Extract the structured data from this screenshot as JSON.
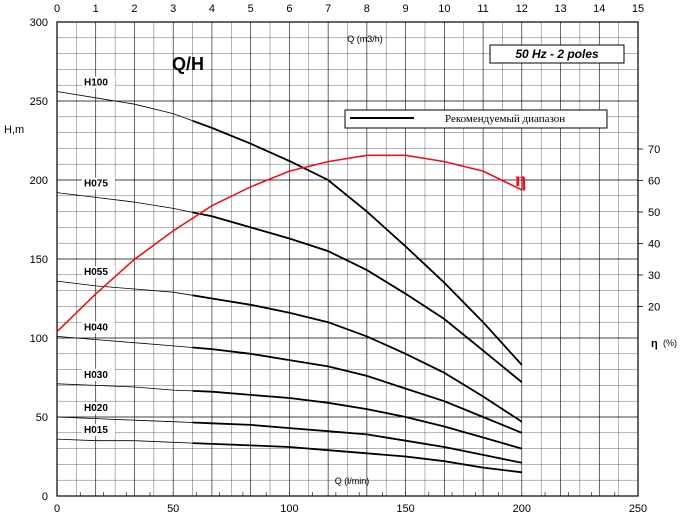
{
  "chart_data": {
    "type": "line",
    "title": "Q/H",
    "badge": "50 Hz - 2 poles",
    "ylabel": "H,m",
    "ylim": [
      0,
      300
    ],
    "yticks": [
      0,
      50,
      100,
      150,
      200,
      250,
      300
    ],
    "x_top": {
      "label": "Q (m3/h)",
      "range": [
        0,
        15
      ],
      "ticks": [
        0,
        1,
        2,
        3,
        4,
        5,
        6,
        7,
        8,
        9,
        10,
        11,
        12,
        13,
        14,
        15
      ]
    },
    "x_bottom": {
      "label": "Q (l/min)",
      "range": [
        0,
        250
      ],
      "ticks": [
        0,
        50,
        100,
        150,
        200,
        250
      ]
    },
    "eta_axis": {
      "label": "η",
      "unit": "(%)",
      "ticks": [
        20,
        30,
        40,
        50,
        60,
        70
      ]
    },
    "legend": {
      "text": "Рекомендуемый диапазон"
    },
    "series": [
      {
        "name": "H100",
        "x": [
          0,
          1,
          2,
          3,
          4,
          5,
          6,
          7,
          7.5,
          8,
          9,
          10,
          11,
          12
        ],
        "y": [
          256,
          252,
          248,
          242,
          233,
          223,
          212,
          200,
          190,
          180,
          158,
          135,
          110,
          83
        ],
        "rec_from": 3.5
      },
      {
        "name": "H075",
        "x": [
          0,
          1,
          2,
          3,
          4,
          5,
          6,
          7,
          8,
          9,
          10,
          11,
          12
        ],
        "y": [
          192,
          189,
          186,
          182,
          177,
          170,
          163,
          155,
          143,
          128,
          112,
          92,
          72
        ],
        "rec_from": 3.5
      },
      {
        "name": "H055",
        "x": [
          0,
          1,
          2,
          3,
          4,
          5,
          6,
          7,
          8,
          9,
          10,
          11,
          12
        ],
        "y": [
          136,
          133,
          131,
          129,
          125,
          121,
          116,
          110,
          101,
          90,
          78,
          63,
          47
        ],
        "rec_from": 3.5
      },
      {
        "name": "H040",
        "x": [
          0,
          1,
          2,
          3,
          4,
          5,
          6,
          7,
          8,
          9,
          10,
          11,
          12
        ],
        "y": [
          101,
          99,
          97,
          95,
          93,
          90,
          86,
          82,
          76,
          68,
          60,
          50,
          40
        ],
        "rec_from": 3.5
      },
      {
        "name": "H030",
        "x": [
          0,
          1,
          2,
          3,
          4,
          5,
          6,
          7,
          8,
          9,
          10,
          11,
          12
        ],
        "y": [
          71,
          70,
          69,
          67,
          66,
          64,
          62,
          59,
          55,
          50,
          44,
          37,
          30
        ],
        "rec_from": 3.5
      },
      {
        "name": "H020",
        "x": [
          0,
          1,
          2,
          3,
          4,
          5,
          6,
          7,
          8,
          9,
          10,
          11,
          12
        ],
        "y": [
          50,
          49,
          48,
          47,
          46,
          45,
          43,
          41,
          39,
          35,
          31,
          26,
          21
        ],
        "rec_from": 3.5
      },
      {
        "name": "H015",
        "x": [
          0,
          1,
          2,
          3,
          4,
          5,
          6,
          7,
          8,
          9,
          10,
          11,
          12
        ],
        "y": [
          36,
          35,
          35,
          34,
          33,
          32,
          31,
          29,
          27,
          25,
          22,
          18,
          15
        ],
        "rec_from": 3.5
      }
    ],
    "efficiency": {
      "name": "η",
      "color": "#e8141c",
      "x": [
        0,
        1,
        2,
        3,
        4,
        5,
        6,
        7,
        8,
        9,
        10,
        11,
        12
      ],
      "y": [
        12,
        24,
        35,
        44,
        52,
        58,
        63,
        66,
        68,
        68,
        66,
        63,
        57
      ]
    },
    "grid": true
  }
}
